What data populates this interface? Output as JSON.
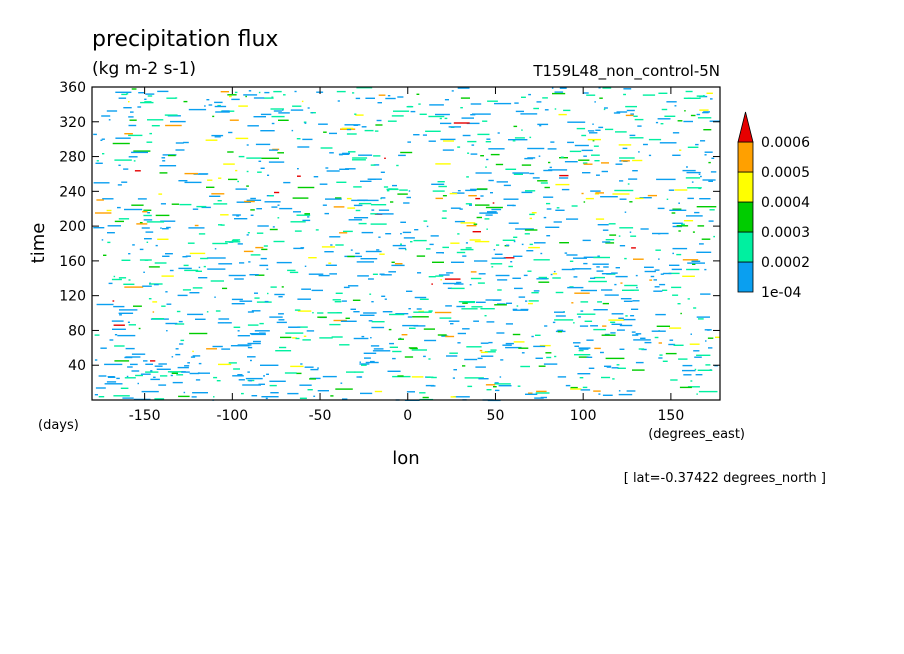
{
  "chart_data": {
    "type": "heatmap",
    "title": "precipitation flux",
    "units": "(kg m-2 s-1)",
    "run_label": "T159L48_non_control-5N",
    "xlabel": "lon",
    "xunits": "(degrees_east)",
    "ylabel": "time",
    "yunits": "(days)",
    "footnote": "[ lat=-0.37422 degrees_north ]",
    "xlim": [
      -180,
      178
    ],
    "ylim": [
      0,
      360
    ],
    "x_ticks": [
      -150,
      -100,
      -50,
      0,
      50,
      100,
      150
    ],
    "y_ticks": [
      40,
      80,
      120,
      160,
      200,
      240,
      280,
      320,
      360
    ],
    "colorbar": {
      "levels": [
        0.0001,
        0.0002,
        0.0003,
        0.0004,
        0.0005,
        0.0006
      ],
      "labels": [
        "1e-04",
        "0.0002",
        "0.0003",
        "0.0004",
        "0.0005",
        "0.0006"
      ],
      "colors": [
        "#0a9ff0",
        "#00f0a0",
        "#00cc00",
        "#ffff00",
        "#ffa000",
        "#e60000"
      ],
      "extend": "max"
    }
  }
}
